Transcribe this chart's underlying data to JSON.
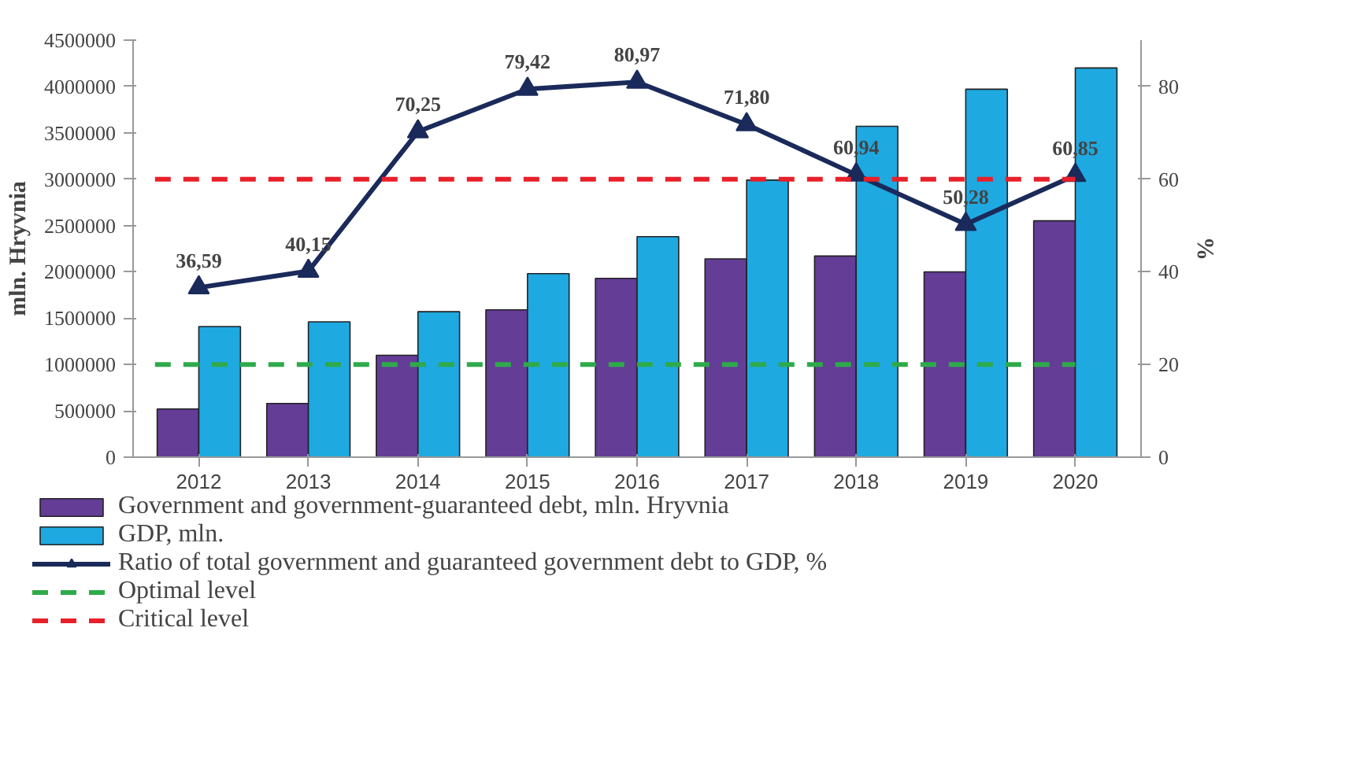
{
  "chart_data": {
    "type": "bar",
    "ylabel": "mln. Hryvnia",
    "y2label": "%",
    "categories": [
      "2012",
      "2013",
      "2014",
      "2015",
      "2016",
      "2017",
      "2018",
      "2019",
      "2020"
    ],
    "series": [
      {
        "name": "Government and government-guaranteed debt, mln. Hryvnia",
        "color": "#643d97",
        "values": [
          520000,
          580000,
          1100000,
          1590000,
          1930000,
          2140000,
          2170000,
          2000000,
          2550000
        ]
      },
      {
        "name": "GDP, mln.",
        "color": "#1fa9e1",
        "values": [
          1410000,
          1460000,
          1570000,
          1980000,
          2380000,
          2990000,
          3570000,
          3970000,
          4200000
        ]
      },
      {
        "name": "Ratio of total government and guaranteed government debt to GDP, %",
        "type": "line",
        "axis": "y2",
        "color": "#1a2a5a",
        "marker": "triangle",
        "values": [
          36.59,
          40.15,
          70.25,
          79.42,
          80.97,
          71.8,
          60.94,
          50.28,
          60.85
        ],
        "value_labels": [
          "36,59",
          "40,15",
          "70,25",
          "79,42",
          "80,97",
          "71,80",
          "60,94",
          "50,28",
          "60,85"
        ]
      }
    ],
    "ref_lines": [
      {
        "axis": "y2",
        "value": 20,
        "label": "Optimal level",
        "color": "#2eaa4a",
        "line_style": "dashed"
      },
      {
        "axis": "y2",
        "value": 60,
        "label": "Critical level",
        "color": "#e8202a",
        "line_style": "dashed"
      }
    ],
    "ylim": [
      0,
      4500000
    ],
    "yticks": [
      0,
      500000,
      1000000,
      1500000,
      2000000,
      2500000,
      3000000,
      3500000,
      4000000,
      4500000
    ],
    "y2lim": [
      0,
      90
    ],
    "y2ticks": [
      0,
      20,
      40,
      60,
      80
    ],
    "grid": false,
    "legend": "bottom"
  }
}
